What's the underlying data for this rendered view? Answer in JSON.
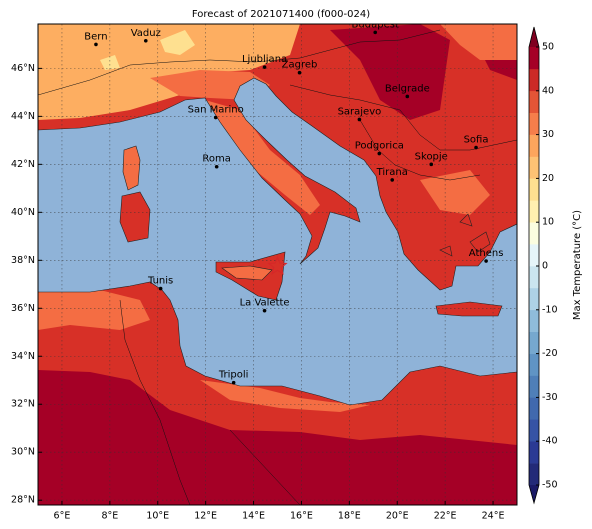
{
  "title": "Forecast of 2021071400 (f000-024)",
  "map": {
    "xlim": [
      5,
      25
    ],
    "ylim": [
      27.8,
      47.85
    ],
    "xticks": [
      {
        "value": 6,
        "label": "6°E"
      },
      {
        "value": 8,
        "label": "8°E"
      },
      {
        "value": 10,
        "label": "10°E"
      },
      {
        "value": 12,
        "label": "12°E"
      },
      {
        "value": 14,
        "label": "14°E"
      },
      {
        "value": 16,
        "label": "16°E"
      },
      {
        "value": 18,
        "label": "18°E"
      },
      {
        "value": 20,
        "label": "20°E"
      },
      {
        "value": 22,
        "label": "22°E"
      },
      {
        "value": 24,
        "label": "24°E"
      }
    ],
    "yticks": [
      {
        "value": 28,
        "label": "28°N"
      },
      {
        "value": 30,
        "label": "30°N"
      },
      {
        "value": 32,
        "label": "32°N"
      },
      {
        "value": 34,
        "label": "34°N"
      },
      {
        "value": 36,
        "label": "36°N"
      },
      {
        "value": 38,
        "label": "38°N"
      },
      {
        "value": 40,
        "label": "40°N"
      },
      {
        "value": 42,
        "label": "42°N"
      },
      {
        "value": 44,
        "label": "44°N"
      },
      {
        "value": 46,
        "label": "46°N"
      }
    ],
    "grid": true,
    "cities": [
      {
        "name": "Bern",
        "lon": 7.42,
        "lat": 47.0
      },
      {
        "name": "Vaduz",
        "lon": 9.5,
        "lat": 47.15
      },
      {
        "name": "Budapest",
        "lon": 19.08,
        "lat": 47.5
      },
      {
        "name": "Ljubljana",
        "lon": 14.46,
        "lat": 46.05
      },
      {
        "name": "Zagreb",
        "lon": 15.92,
        "lat": 45.82
      },
      {
        "name": "Belgrade",
        "lon": 20.42,
        "lat": 44.83
      },
      {
        "name": "San Marino",
        "lon": 12.42,
        "lat": 43.95
      },
      {
        "name": "Sarajevo",
        "lon": 18.42,
        "lat": 43.87
      },
      {
        "name": "Sofia",
        "lon": 23.29,
        "lat": 42.7
      },
      {
        "name": "Podgorica",
        "lon": 19.25,
        "lat": 42.45
      },
      {
        "name": "Roma",
        "lon": 12.46,
        "lat": 41.9
      },
      {
        "name": "Skopje",
        "lon": 21.42,
        "lat": 42.0
      },
      {
        "name": "Tirana",
        "lon": 19.79,
        "lat": 41.35
      },
      {
        "name": "Athens",
        "lon": 23.71,
        "lat": 37.97
      },
      {
        "name": "Tunis",
        "lon": 10.12,
        "lat": 36.82
      },
      {
        "name": "La Valette",
        "lon": 14.46,
        "lat": 35.9
      },
      {
        "name": "Tripoli",
        "lon": 13.17,
        "lat": 32.9
      }
    ],
    "marker": {
      "lon": 15.0,
      "lat": 37.75,
      "color": "#d62728"
    }
  },
  "colorbar": {
    "label": "Max Temperature (°C)",
    "lim": [
      -50,
      50
    ],
    "ticks": [
      -50,
      -40,
      -30,
      -20,
      -10,
      0,
      10,
      20,
      30,
      40,
      50
    ],
    "colors": [
      "#232a78",
      "#2b3a94",
      "#3653a5",
      "#4169ae",
      "#4f7fb8",
      "#6094c4",
      "#76a8cf",
      "#8fbcdb",
      "#aed2e6",
      "#cbe5ef",
      "#e6f5f9",
      "#fbfde0",
      "#fff0b0",
      "#fee090",
      "#fdc274",
      "#fca55d",
      "#f67e4b",
      "#e45536",
      "#cc2a26",
      "#a50026"
    ],
    "under": "#1a1a66",
    "over": "#7f0020"
  }
}
